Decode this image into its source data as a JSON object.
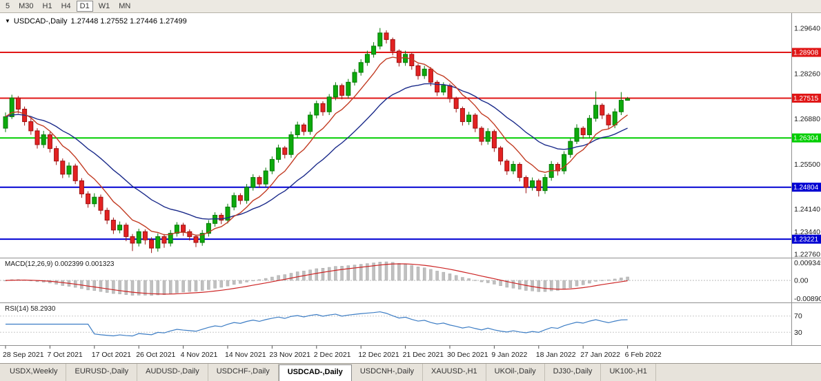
{
  "toolbar": {
    "periods": [
      {
        "label": "5",
        "active": false
      },
      {
        "label": "M30",
        "active": false
      },
      {
        "label": "H1",
        "active": false
      },
      {
        "label": "H4",
        "active": false
      },
      {
        "label": "D1",
        "active": true
      },
      {
        "label": "W1",
        "active": false
      },
      {
        "label": "MN",
        "active": false
      }
    ]
  },
  "chart": {
    "title": {
      "symbol": "USDCAD-,Daily",
      "quotes": "1.27448 1.27552 1.27446 1.27499"
    },
    "price_axis": {
      "min": 1.227,
      "max": 1.3,
      "labels": [
        {
          "text": "1.29640",
          "price": 1.2964
        },
        {
          "text": "1.28260",
          "price": 1.2826
        },
        {
          "text": "1.26880",
          "price": 1.2688
        },
        {
          "text": "1.25500",
          "price": 1.255
        },
        {
          "text": "1.24140",
          "price": 1.2414
        },
        {
          "text": "1.23440",
          "price": 1.2344
        },
        {
          "text": "1.22760",
          "price": 1.2276
        }
      ]
    },
    "hlines": [
      {
        "price": 1.28908,
        "label": "1.28908",
        "color": "#e01616"
      },
      {
        "price": 1.27515,
        "label": "1.27515",
        "color": "#e01616"
      },
      {
        "price": 1.26304,
        "label": "1.26304",
        "color": "#00ce00"
      },
      {
        "price": 1.24804,
        "label": "1.24804",
        "color": "#0000d2"
      },
      {
        "price": 1.23221,
        "label": "1.23221",
        "color": "#0000d2"
      }
    ],
    "colors": {
      "bull": "#0caa0c",
      "bull_edge": "#067806",
      "bear": "#e32222",
      "bear_edge": "#9c1010",
      "ma_fast": "#c23b22",
      "ma_slow": "#1a2a8a",
      "macd_hist": "#c0c0c0",
      "macd_signal": "#cc2222",
      "rsi": "#3b7cc4",
      "divider": "#8f8f8f",
      "axis_text": "#1a1a1a"
    }
  },
  "chart_data": {
    "type": "candlestick",
    "title": "USDCAD-,Daily",
    "symbol": "USDCAD",
    "timeframe": "Daily",
    "ylim": [
      1.227,
      1.3
    ],
    "x_labels": [
      "28 Sep 2021",
      "7 Oct 2021",
      "17 Oct 2021",
      "26 Oct 2021",
      "4 Nov 2021",
      "14 Nov 2021",
      "23 Nov 2021",
      "2 Dec 2021",
      "12 Dec 2021",
      "21 Dec 2021",
      "30 Dec 2021",
      "9 Jan 2022",
      "18 Jan 2022",
      "27 Jan 2022",
      "6 Feb 2022"
    ],
    "label_every": 7,
    "ohlc": [
      [
        1.266,
        1.2708,
        1.2648,
        1.2695
      ],
      [
        1.2695,
        1.2762,
        1.2688,
        1.2752
      ],
      [
        1.2752,
        1.2758,
        1.2705,
        1.2718
      ],
      [
        1.2718,
        1.2726,
        1.2668,
        1.268
      ],
      [
        1.268,
        1.2692,
        1.264,
        1.2652
      ],
      [
        1.2652,
        1.266,
        1.2598,
        1.261
      ],
      [
        1.261,
        1.2652,
        1.26,
        1.264
      ],
      [
        1.264,
        1.2648,
        1.2586,
        1.2598
      ],
      [
        1.2598,
        1.2606,
        1.2548,
        1.256
      ],
      [
        1.256,
        1.2568,
        1.2508,
        1.252
      ],
      [
        1.252,
        1.2556,
        1.251,
        1.2545
      ],
      [
        1.2545,
        1.2552,
        1.249,
        1.25
      ],
      [
        1.25,
        1.2508,
        1.2448,
        1.246
      ],
      [
        1.246,
        1.2468,
        1.2418,
        1.243
      ],
      [
        1.243,
        1.2462,
        1.242,
        1.245
      ],
      [
        1.245,
        1.2458,
        1.2398,
        1.241
      ],
      [
        1.241,
        1.2418,
        1.2368,
        1.238
      ],
      [
        1.238,
        1.2388,
        1.2338,
        1.235
      ],
      [
        1.235,
        1.2376,
        1.234,
        1.2365
      ],
      [
        1.2365,
        1.2372,
        1.2316,
        1.233
      ],
      [
        1.233,
        1.2338,
        1.2286,
        1.231
      ],
      [
        1.231,
        1.2354,
        1.23,
        1.2345
      ],
      [
        1.2345,
        1.2352,
        1.2306,
        1.232
      ],
      [
        1.232,
        1.2328,
        1.228,
        1.2295
      ],
      [
        1.2295,
        1.234,
        1.2284,
        1.233
      ],
      [
        1.233,
        1.2338,
        1.2296,
        1.231
      ],
      [
        1.231,
        1.235,
        1.23,
        1.234
      ],
      [
        1.234,
        1.2374,
        1.233,
        1.2365
      ],
      [
        1.2365,
        1.2372,
        1.2332,
        1.2345
      ],
      [
        1.2345,
        1.2352,
        1.2318,
        1.233
      ],
      [
        1.233,
        1.2336,
        1.2298,
        1.2312
      ],
      [
        1.2312,
        1.235,
        1.2302,
        1.234
      ],
      [
        1.234,
        1.238,
        1.233,
        1.237
      ],
      [
        1.237,
        1.2404,
        1.236,
        1.2395
      ],
      [
        1.2395,
        1.2402,
        1.2368,
        1.238
      ],
      [
        1.238,
        1.243,
        1.237,
        1.242
      ],
      [
        1.242,
        1.2464,
        1.241,
        1.2455
      ],
      [
        1.2455,
        1.2462,
        1.2428,
        1.244
      ],
      [
        1.244,
        1.249,
        1.243,
        1.248
      ],
      [
        1.248,
        1.252,
        1.247,
        1.251
      ],
      [
        1.251,
        1.2516,
        1.2478,
        1.249
      ],
      [
        1.249,
        1.254,
        1.248,
        1.253
      ],
      [
        1.253,
        1.2574,
        1.252,
        1.2565
      ],
      [
        1.2565,
        1.261,
        1.2555,
        1.26
      ],
      [
        1.26,
        1.2606,
        1.2568,
        1.258
      ],
      [
        1.258,
        1.265,
        1.257,
        1.264
      ],
      [
        1.264,
        1.268,
        1.263,
        1.267
      ],
      [
        1.267,
        1.2676,
        1.2638,
        1.265
      ],
      [
        1.265,
        1.271,
        1.264,
        1.27
      ],
      [
        1.27,
        1.2744,
        1.269,
        1.2735
      ],
      [
        1.2735,
        1.2742,
        1.2698,
        1.271
      ],
      [
        1.271,
        1.2764,
        1.27,
        1.2755
      ],
      [
        1.2755,
        1.28,
        1.2745,
        1.279
      ],
      [
        1.279,
        1.2796,
        1.2748,
        1.276
      ],
      [
        1.276,
        1.281,
        1.275,
        1.28
      ],
      [
        1.28,
        1.284,
        1.279,
        1.283
      ],
      [
        1.283,
        1.287,
        1.282,
        1.286
      ],
      [
        1.286,
        1.2896,
        1.285,
        1.2885
      ],
      [
        1.2885,
        1.2922,
        1.2875,
        1.291
      ],
      [
        1.291,
        1.2965,
        1.29,
        1.295
      ],
      [
        1.295,
        1.2958,
        1.2918,
        1.293
      ],
      [
        1.293,
        1.2936,
        1.2882,
        1.2895
      ],
      [
        1.2895,
        1.29,
        1.2848,
        1.286
      ],
      [
        1.286,
        1.2896,
        1.285,
        1.2885
      ],
      [
        1.2885,
        1.289,
        1.2838,
        1.285
      ],
      [
        1.285,
        1.2856,
        1.2808,
        1.282
      ],
      [
        1.282,
        1.285,
        1.281,
        1.284
      ],
      [
        1.284,
        1.2846,
        1.2788,
        1.28
      ],
      [
        1.28,
        1.2806,
        1.2758,
        1.277
      ],
      [
        1.277,
        1.28,
        1.276,
        1.279
      ],
      [
        1.279,
        1.2796,
        1.2738,
        1.275
      ],
      [
        1.275,
        1.2756,
        1.2708,
        1.272
      ],
      [
        1.272,
        1.2726,
        1.2668,
        1.268
      ],
      [
        1.268,
        1.271,
        1.267,
        1.27
      ],
      [
        1.27,
        1.2706,
        1.2648,
        1.266
      ],
      [
        1.266,
        1.2666,
        1.2608,
        1.262
      ],
      [
        1.262,
        1.266,
        1.261,
        1.265
      ],
      [
        1.265,
        1.2656,
        1.2588,
        1.26
      ],
      [
        1.26,
        1.2606,
        1.2548,
        1.256
      ],
      [
        1.256,
        1.2566,
        1.2518,
        1.253
      ],
      [
        1.253,
        1.256,
        1.252,
        1.255
      ],
      [
        1.255,
        1.2556,
        1.2498,
        1.251
      ],
      [
        1.251,
        1.2516,
        1.2462,
        1.248
      ],
      [
        1.248,
        1.251,
        1.247,
        1.25
      ],
      [
        1.25,
        1.2506,
        1.2452,
        1.247
      ],
      [
        1.247,
        1.252,
        1.246,
        1.251
      ],
      [
        1.251,
        1.256,
        1.25,
        1.255
      ],
      [
        1.255,
        1.2556,
        1.2516,
        1.253
      ],
      [
        1.253,
        1.259,
        1.252,
        1.258
      ],
      [
        1.258,
        1.263,
        1.257,
        1.262
      ],
      [
        1.262,
        1.2672,
        1.2612,
        1.266
      ],
      [
        1.266,
        1.2666,
        1.2628,
        1.264
      ],
      [
        1.264,
        1.27,
        1.263,
        1.269
      ],
      [
        1.269,
        1.2772,
        1.268,
        1.273
      ],
      [
        1.273,
        1.2736,
        1.2688,
        1.27
      ],
      [
        1.27,
        1.2706,
        1.2658,
        1.267
      ],
      [
        1.267,
        1.272,
        1.266,
        1.271
      ],
      [
        1.271,
        1.277,
        1.27,
        1.2745
      ],
      [
        1.27448,
        1.27552,
        1.27446,
        1.27499
      ]
    ]
  },
  "macd": {
    "label": "MACD(12,26,9) 0.002399 0.001323",
    "fast": 12,
    "slow": 26,
    "signal": 9,
    "axis_top": "0.009345",
    "axis_zero": "0.00",
    "axis_bottom": "-0.00890"
  },
  "rsi": {
    "label": "RSI(14) 58.2930",
    "period": 14,
    "levels": [
      "70",
      "30"
    ],
    "level_values": [
      70,
      30
    ]
  },
  "tabs": [
    {
      "label": "USDX,Weekly",
      "active": false
    },
    {
      "label": "EURUSD-,Daily",
      "active": false
    },
    {
      "label": "AUDUSD-,Daily",
      "active": false
    },
    {
      "label": "USDCHF-,Daily",
      "active": false
    },
    {
      "label": "USDCAD-,Daily",
      "active": true
    },
    {
      "label": "USDCNH-,Daily",
      "active": false
    },
    {
      "label": "XAUUSD-,H1",
      "active": false
    },
    {
      "label": "UKOil-,Daily",
      "active": false
    },
    {
      "label": "DJ30-,Daily",
      "active": false
    },
    {
      "label": "UK100-,H1",
      "active": false
    }
  ]
}
